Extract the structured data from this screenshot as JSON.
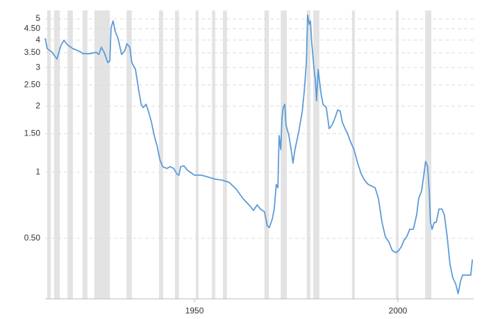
{
  "chart_data": {
    "type": "line",
    "log_scale_y": true,
    "grid": true,
    "xlim": [
      1913.3,
      2018.6
    ],
    "ylim": [
      0.265,
      5.46
    ],
    "xticks": [
      1950,
      2000
    ],
    "yticks": [
      5,
      {
        "value": 4.5,
        "label": "4.50"
      },
      4,
      {
        "value": 3.5,
        "label": "3.50"
      },
      3,
      {
        "value": 2.5,
        "label": "2.50"
      },
      2,
      {
        "value": 1.5,
        "label": "1.50"
      },
      1,
      {
        "value": 0.5,
        "label": "0.50"
      }
    ],
    "shaded_regions": [
      [
        1913.8,
        1914.7
      ],
      [
        1915.5,
        1916.9
      ],
      [
        1918.8,
        1920.1
      ],
      [
        1922.5,
        1923.7
      ],
      [
        1925.4,
        1929.2
      ],
      [
        1933.3,
        1934.6
      ],
      [
        1941.3,
        1942.3
      ],
      [
        1945.2,
        1946.2
      ],
      [
        1950.3,
        1951.0
      ],
      [
        1954.3,
        1955.1
      ],
      [
        1957.0,
        1958.0
      ],
      [
        1967.2,
        1968.3
      ],
      [
        1971.2,
        1972.7
      ],
      [
        1977.6,
        1978.5
      ],
      [
        1979.2,
        1980.7
      ],
      [
        1988.7,
        1989.4
      ],
      [
        1999.5,
        2000.2
      ],
      [
        2006.7,
        2008.2
      ]
    ],
    "shade_color": "#e3e3e3",
    "x": [
      1913.3,
      1913.8,
      1915.0,
      1916.2,
      1917.2,
      1917.9,
      1918.9,
      1920.1,
      1921.8,
      1922.6,
      1924.4,
      1925.8,
      1926.5,
      1927.1,
      1927.8,
      1928.7,
      1929.2,
      1929.5,
      1930.0,
      1930.5,
      1931.2,
      1932.1,
      1932.9,
      1933.4,
      1934.1,
      1934.6,
      1935.5,
      1936.3,
      1936.9,
      1937.4,
      1938.1,
      1938.6,
      1939.4,
      1940.1,
      1940.8,
      1941.5,
      1942.2,
      1943.2,
      1944.0,
      1944.9,
      1945.7,
      1946.2,
      1946.6,
      1947.4,
      1948.3,
      1950.0,
      1951.7,
      1953.4,
      1955.1,
      1956.8,
      1958.5,
      1960.2,
      1961.9,
      1963.7,
      1964.5,
      1965.4,
      1966.2,
      1967.2,
      1967.9,
      1968.4,
      1969.1,
      1969.6,
      1970.1,
      1970.5,
      1970.8,
      1971.2,
      1971.5,
      1971.8,
      1972.2,
      1972.5,
      1973.2,
      1973.9,
      1974.2,
      1974.7,
      1975.6,
      1976.5,
      1977.0,
      1977.5,
      1977.8,
      1978.2,
      1978.5,
      1978.8,
      1979.4,
      1979.7,
      1980.0,
      1980.4,
      1980.7,
      1981.1,
      1981.6,
      1982.4,
      1983.1,
      1983.8,
      1984.5,
      1985.2,
      1985.8,
      1986.3,
      1987.0,
      1987.5,
      1988.4,
      1989.2,
      1990.1,
      1991.0,
      1991.8,
      1992.7,
      1994.4,
      1995.2,
      1996.1,
      1996.9,
      1997.8,
      1998.6,
      1999.5,
      2000.2,
      2000.9,
      2001.5,
      2002.2,
      2002.9,
      2003.8,
      2004.6,
      2005.1,
      2005.8,
      2006.3,
      2006.8,
      2007.3,
      2007.7,
      2008.0,
      2008.4,
      2008.9,
      2009.4,
      2010.1,
      2010.8,
      2011.4,
      2012.1,
      2012.8,
      2013.5,
      2014.2,
      2014.8,
      2015.4,
      2015.9,
      2016.6,
      2017.4,
      2017.9,
      2018.3
    ],
    "series": [
      {
        "color": "#5b9bd8",
        "values": [
          4.08,
          3.66,
          3.52,
          3.28,
          3.79,
          3.99,
          3.79,
          3.66,
          3.55,
          3.47,
          3.47,
          3.52,
          3.44,
          3.71,
          3.52,
          3.16,
          3.21,
          4.55,
          4.89,
          4.39,
          4.08,
          3.44,
          3.58,
          3.85,
          3.71,
          3.16,
          2.94,
          2.36,
          2.04,
          1.97,
          2.04,
          1.92,
          1.7,
          1.47,
          1.32,
          1.14,
          1.06,
          1.04,
          1.06,
          1.04,
          0.98,
          0.97,
          1.06,
          1.07,
          1.02,
          0.97,
          0.97,
          0.95,
          0.93,
          0.92,
          0.9,
          0.84,
          0.76,
          0.7,
          0.67,
          0.71,
          0.68,
          0.66,
          0.57,
          0.56,
          0.61,
          0.68,
          0.88,
          0.85,
          1.47,
          1.27,
          1.76,
          1.97,
          2.04,
          1.64,
          1.47,
          1.22,
          1.1,
          1.27,
          1.52,
          1.9,
          2.36,
          3.16,
          5.19,
          4.72,
          4.89,
          3.93,
          2.94,
          2.63,
          2.12,
          2.94,
          2.63,
          2.28,
          2.04,
          1.97,
          1.58,
          1.64,
          1.76,
          1.92,
          1.9,
          1.7,
          1.58,
          1.52,
          1.37,
          1.27,
          1.1,
          0.98,
          0.92,
          0.88,
          0.85,
          0.76,
          0.59,
          0.51,
          0.48,
          0.44,
          0.43,
          0.44,
          0.46,
          0.49,
          0.51,
          0.55,
          0.55,
          0.64,
          0.76,
          0.82,
          0.95,
          1.12,
          1.06,
          0.82,
          0.59,
          0.55,
          0.59,
          0.59,
          0.68,
          0.68,
          0.64,
          0.51,
          0.38,
          0.33,
          0.31,
          0.28,
          0.32,
          0.34,
          0.34,
          0.34,
          0.34,
          0.4
        ]
      }
    ]
  }
}
